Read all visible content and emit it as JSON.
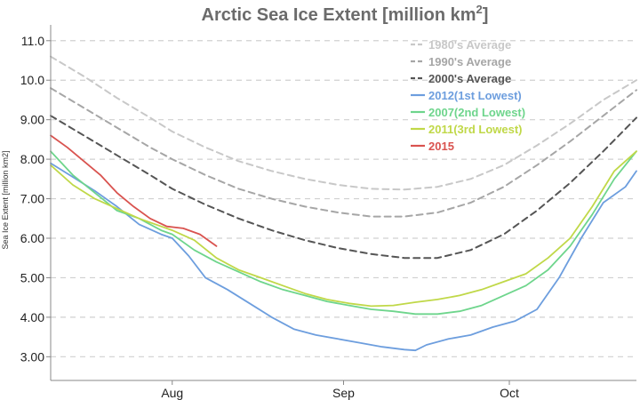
{
  "chart_data": {
    "type": "line",
    "title": "Arctic Sea Ice Extent [million km",
    "title_sup": "2",
    "title_end": "]",
    "ylabel": "Sea Ice Extent [million km2]",
    "xlabel": "",
    "x_ticks": [
      {
        "label": "Aug",
        "x": 0
      },
      {
        "label": "Sep",
        "x": 31
      },
      {
        "label": "Oct",
        "x": 61
      }
    ],
    "x_range": [
      -22,
      84
    ],
    "x_unit": "day offset from Aug 1",
    "y_ticks": [
      "3.00",
      "4.00",
      "5.00",
      "6.00",
      "7.00",
      "8.00",
      "9.00",
      "10.0",
      "11.0"
    ],
    "ylim": [
      2.4,
      11.4
    ],
    "grid": "horizontal dashed",
    "legend_position": "top-right",
    "series": [
      {
        "name": "1980's Average",
        "color": "#c8c8c8",
        "dash": true,
        "points": [
          [
            -22,
            10.6
          ],
          [
            -16,
            10.1
          ],
          [
            -10,
            9.55
          ],
          [
            -4,
            9.05
          ],
          [
            0,
            8.7
          ],
          [
            6,
            8.3
          ],
          [
            12,
            7.95
          ],
          [
            18,
            7.7
          ],
          [
            24,
            7.5
          ],
          [
            30,
            7.35
          ],
          [
            36,
            7.25
          ],
          [
            42,
            7.23
          ],
          [
            48,
            7.3
          ],
          [
            54,
            7.5
          ],
          [
            60,
            7.85
          ],
          [
            66,
            8.35
          ],
          [
            72,
            8.9
          ],
          [
            78,
            9.5
          ],
          [
            84,
            10.0
          ]
        ]
      },
      {
        "name": "1990's Average",
        "color": "#a6a6a6",
        "dash": true,
        "points": [
          [
            -22,
            9.8
          ],
          [
            -16,
            9.3
          ],
          [
            -10,
            8.8
          ],
          [
            -4,
            8.3
          ],
          [
            0,
            8.0
          ],
          [
            6,
            7.6
          ],
          [
            12,
            7.25
          ],
          [
            18,
            7.0
          ],
          [
            24,
            6.8
          ],
          [
            30,
            6.65
          ],
          [
            36,
            6.55
          ],
          [
            42,
            6.55
          ],
          [
            48,
            6.65
          ],
          [
            54,
            6.9
          ],
          [
            60,
            7.3
          ],
          [
            66,
            7.85
          ],
          [
            72,
            8.45
          ],
          [
            78,
            9.1
          ],
          [
            84,
            9.75
          ]
        ]
      },
      {
        "name": "2000's Average",
        "color": "#555555",
        "dash": true,
        "points": [
          [
            -22,
            9.1
          ],
          [
            -16,
            8.6
          ],
          [
            -10,
            8.1
          ],
          [
            -4,
            7.6
          ],
          [
            0,
            7.25
          ],
          [
            6,
            6.85
          ],
          [
            12,
            6.5
          ],
          [
            18,
            6.2
          ],
          [
            24,
            5.95
          ],
          [
            30,
            5.75
          ],
          [
            36,
            5.6
          ],
          [
            42,
            5.5
          ],
          [
            48,
            5.5
          ],
          [
            54,
            5.7
          ],
          [
            60,
            6.1
          ],
          [
            66,
            6.7
          ],
          [
            72,
            7.4
          ],
          [
            78,
            8.2
          ],
          [
            84,
            9.05
          ]
        ]
      },
      {
        "name": "2012(1st Lowest)",
        "color": "#6d9ede",
        "dash": false,
        "points": [
          [
            -22,
            7.9
          ],
          [
            -18,
            7.55
          ],
          [
            -14,
            7.2
          ],
          [
            -10,
            6.8
          ],
          [
            -6,
            6.35
          ],
          [
            -2,
            6.1
          ],
          [
            0,
            6.0
          ],
          [
            3,
            5.55
          ],
          [
            6,
            5.0
          ],
          [
            10,
            4.7
          ],
          [
            14,
            4.35
          ],
          [
            18,
            4.0
          ],
          [
            22,
            3.7
          ],
          [
            26,
            3.55
          ],
          [
            30,
            3.45
          ],
          [
            34,
            3.35
          ],
          [
            38,
            3.25
          ],
          [
            42,
            3.18
          ],
          [
            44,
            3.16
          ],
          [
            46,
            3.3
          ],
          [
            50,
            3.45
          ],
          [
            54,
            3.55
          ],
          [
            58,
            3.75
          ],
          [
            62,
            3.9
          ],
          [
            66,
            4.2
          ],
          [
            70,
            5.0
          ],
          [
            74,
            6.0
          ],
          [
            78,
            6.9
          ],
          [
            82,
            7.3
          ],
          [
            84,
            7.7
          ]
        ]
      },
      {
        "name": "2007(2nd Lowest)",
        "color": "#6ed58c",
        "dash": false,
        "points": [
          [
            -22,
            8.2
          ],
          [
            -18,
            7.6
          ],
          [
            -14,
            7.15
          ],
          [
            -10,
            6.7
          ],
          [
            -6,
            6.5
          ],
          [
            -2,
            6.2
          ],
          [
            0,
            6.1
          ],
          [
            4,
            5.7
          ],
          [
            8,
            5.4
          ],
          [
            12,
            5.15
          ],
          [
            16,
            4.9
          ],
          [
            20,
            4.7
          ],
          [
            24,
            4.55
          ],
          [
            28,
            4.4
          ],
          [
            32,
            4.3
          ],
          [
            36,
            4.2
          ],
          [
            40,
            4.15
          ],
          [
            44,
            4.08
          ],
          [
            48,
            4.08
          ],
          [
            52,
            4.15
          ],
          [
            56,
            4.3
          ],
          [
            60,
            4.55
          ],
          [
            64,
            4.8
          ],
          [
            68,
            5.2
          ],
          [
            72,
            5.8
          ],
          [
            76,
            6.6
          ],
          [
            80,
            7.5
          ],
          [
            84,
            8.2
          ]
        ]
      },
      {
        "name": "2011(3rd Lowest)",
        "color": "#c0d848",
        "dash": false,
        "points": [
          [
            -22,
            7.85
          ],
          [
            -18,
            7.35
          ],
          [
            -14,
            7.0
          ],
          [
            -10,
            6.75
          ],
          [
            -6,
            6.5
          ],
          [
            -2,
            6.3
          ],
          [
            0,
            6.2
          ],
          [
            4,
            5.95
          ],
          [
            8,
            5.5
          ],
          [
            12,
            5.2
          ],
          [
            16,
            5.0
          ],
          [
            20,
            4.8
          ],
          [
            24,
            4.6
          ],
          [
            28,
            4.45
          ],
          [
            32,
            4.35
          ],
          [
            36,
            4.28
          ],
          [
            40,
            4.3
          ],
          [
            44,
            4.38
          ],
          [
            48,
            4.45
          ],
          [
            52,
            4.55
          ],
          [
            56,
            4.7
          ],
          [
            60,
            4.9
          ],
          [
            64,
            5.1
          ],
          [
            68,
            5.5
          ],
          [
            72,
            6.0
          ],
          [
            76,
            6.8
          ],
          [
            80,
            7.7
          ],
          [
            84,
            8.2
          ]
        ]
      },
      {
        "name": "2015",
        "color": "#d9534f",
        "dash": false,
        "points": [
          [
            -22,
            8.6
          ],
          [
            -19,
            8.3
          ],
          [
            -16,
            7.95
          ],
          [
            -13,
            7.6
          ],
          [
            -10,
            7.15
          ],
          [
            -7,
            6.8
          ],
          [
            -4,
            6.5
          ],
          [
            -1,
            6.3
          ],
          [
            2,
            6.25
          ],
          [
            5,
            6.1
          ],
          [
            8,
            5.8
          ]
        ]
      }
    ]
  }
}
